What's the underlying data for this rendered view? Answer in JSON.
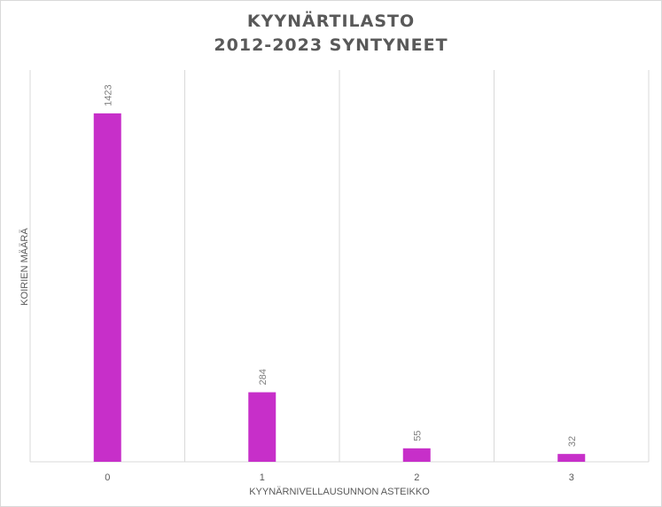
{
  "chart_data": {
    "type": "bar",
    "title": [
      "KYYNÄRTILASTO",
      "2012-2023 SYNTYNEET"
    ],
    "xlabel": "KYYNÄRNIVELLAUSUNNON ASTEIKKO",
    "ylabel": "KOIRIEN MÄÄRÄ",
    "categories": [
      "0",
      "1",
      "2",
      "3"
    ],
    "values": [
      1423,
      284,
      55,
      32
    ],
    "ylim": [
      0,
      1600
    ],
    "bar_color": "#C72FC9",
    "grid": "vertical category separators",
    "data_labels": true
  }
}
